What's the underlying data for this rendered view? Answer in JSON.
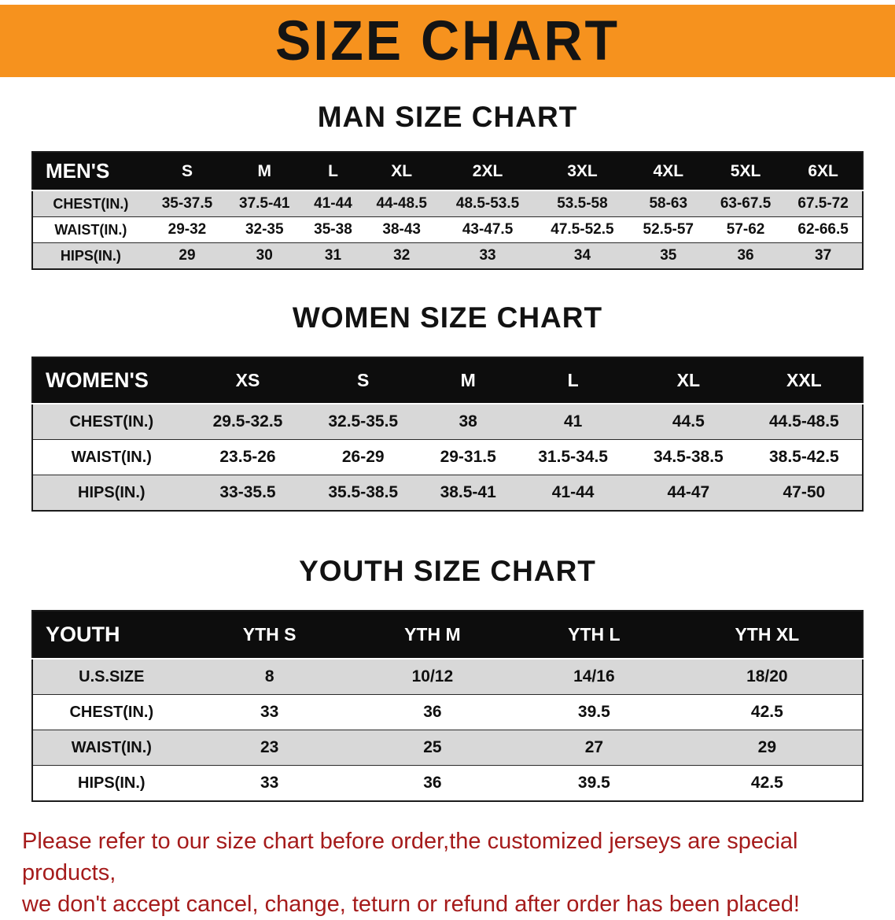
{
  "banner": {
    "title": "SIZE CHART"
  },
  "colors": {
    "banner_orange": "#F6921E",
    "table_header_black": "#0D0D0D",
    "row_stripe_gray": "#D8D8D8",
    "disclaimer_red": "#A51B1B"
  },
  "sections": {
    "men": {
      "heading": "MAN SIZE CHART",
      "table": {
        "header": [
          "MEN'S",
          "S",
          "M",
          "L",
          "XL",
          "2XL",
          "3XL",
          "4XL",
          "5XL",
          "6XL"
        ],
        "rows": [
          [
            "CHEST(IN.)",
            "35-37.5",
            "37.5-41",
            "41-44",
            "44-48.5",
            "48.5-53.5",
            "53.5-58",
            "58-63",
            "63-67.5",
            "67.5-72"
          ],
          [
            "WAIST(IN.)",
            "29-32",
            "32-35",
            "35-38",
            "38-43",
            "43-47.5",
            "47.5-52.5",
            "52.5-57",
            "57-62",
            "62-66.5"
          ],
          [
            "HIPS(IN.)",
            "29",
            "30",
            "31",
            "32",
            "33",
            "34",
            "35",
            "36",
            "37"
          ]
        ]
      }
    },
    "women": {
      "heading": "WOMEN SIZE CHART",
      "table": {
        "header": [
          "WOMEN'S",
          "XS",
          "S",
          "M",
          "L",
          "XL",
          "XXL"
        ],
        "rows": [
          [
            "CHEST(IN.)",
            "29.5-32.5",
            "32.5-35.5",
            "38",
            "41",
            "44.5",
            "44.5-48.5"
          ],
          [
            "WAIST(IN.)",
            "23.5-26",
            "26-29",
            "29-31.5",
            "31.5-34.5",
            "34.5-38.5",
            "38.5-42.5"
          ],
          [
            "HIPS(IN.)",
            "33-35.5",
            "35.5-38.5",
            "38.5-41",
            "41-44",
            "44-47",
            "47-50"
          ]
        ]
      }
    },
    "youth": {
      "heading": "YOUTH SIZE CHART",
      "table": {
        "header": [
          "YOUTH",
          "YTH S",
          "YTH M",
          "YTH L",
          "YTH XL"
        ],
        "rows": [
          [
            "U.S.SIZE",
            "8",
            "10/12",
            "14/16",
            "18/20"
          ],
          [
            "CHEST(IN.)",
            "33",
            "36",
            "39.5",
            "42.5"
          ],
          [
            "WAIST(IN.)",
            "23",
            "25",
            "27",
            "29"
          ],
          [
            "HIPS(IN.)",
            "33",
            "36",
            "39.5",
            "42.5"
          ]
        ]
      }
    }
  },
  "disclaimer": {
    "line1": "Please refer to our size chart before order,the customized jerseys are special products,",
    "line2": "we don't accept cancel, change, teturn or refund after order has been placed!"
  }
}
